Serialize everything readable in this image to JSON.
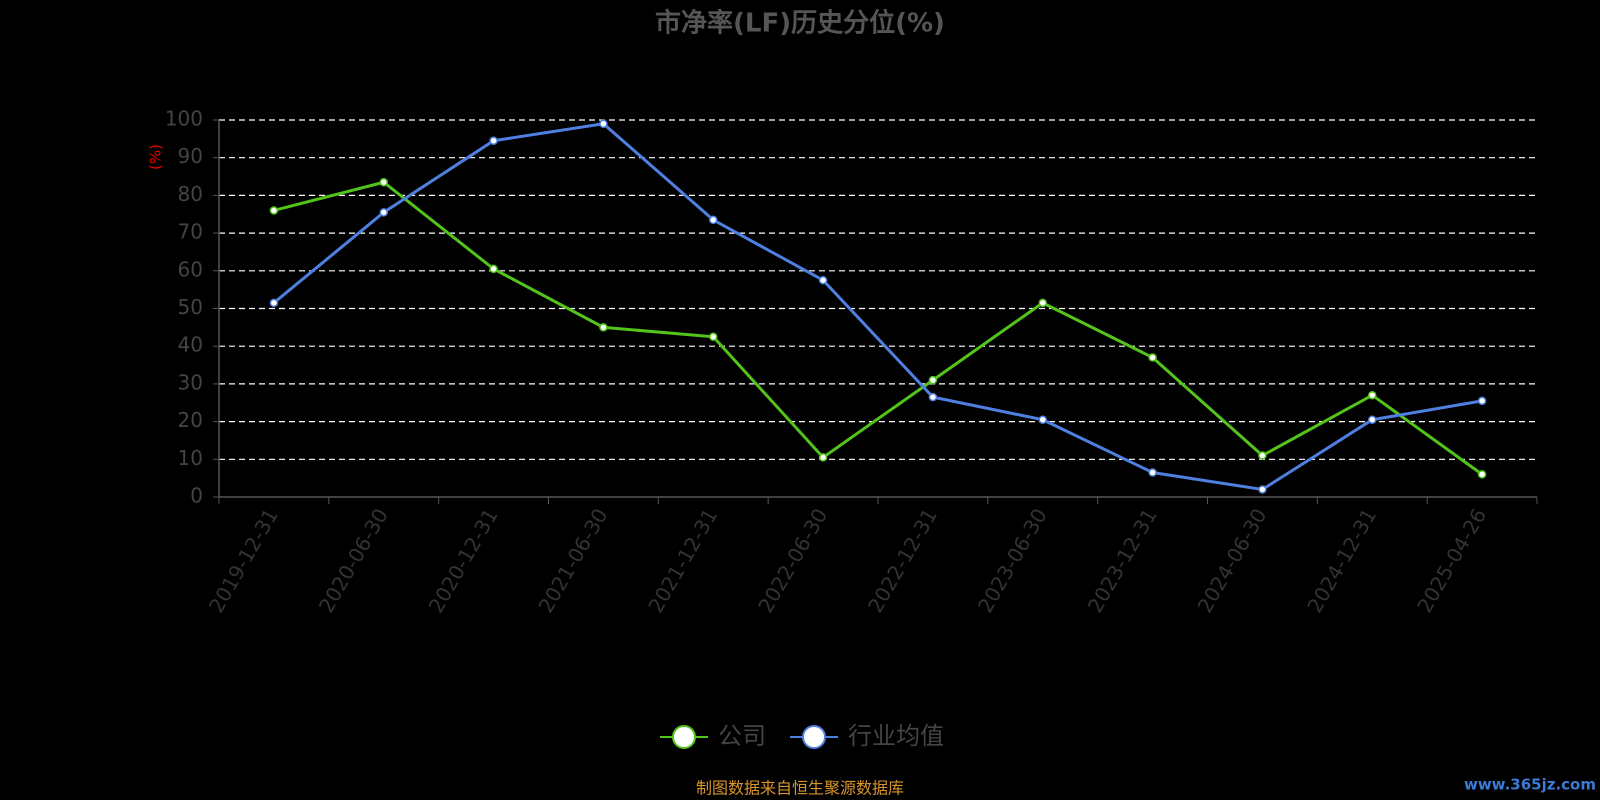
{
  "chart_data": {
    "type": "line",
    "title": "市净率(LF)历史分位(%)",
    "y_label": "(%)",
    "categories": [
      "2019-12-31",
      "2020-06-30",
      "2020-12-31",
      "2021-06-30",
      "2021-12-31",
      "2022-06-30",
      "2022-12-31",
      "2023-06-30",
      "2023-12-31",
      "2024-06-30",
      "2024-12-31",
      "2025-04-26"
    ],
    "series": [
      {
        "name": "公司",
        "color": "#52c41a",
        "values": [
          76,
          83.5,
          60.5,
          45,
          42.5,
          10.5,
          31,
          51.5,
          37,
          11,
          27,
          6
        ]
      },
      {
        "name": "行业均值",
        "color": "#4f7fe0",
        "values": [
          51.5,
          75.5,
          94.5,
          99,
          73.5,
          57.5,
          26.5,
          20.5,
          6.5,
          2,
          20.5,
          25.5
        ]
      }
    ],
    "ylim": [
      0,
      100
    ],
    "yticks": [
      0,
      10,
      20,
      30,
      40,
      50,
      60,
      70,
      80,
      90,
      100
    ],
    "grid": true,
    "source": "制图数据来自恒生聚源数据库",
    "watermark": "www.365jz.com"
  }
}
